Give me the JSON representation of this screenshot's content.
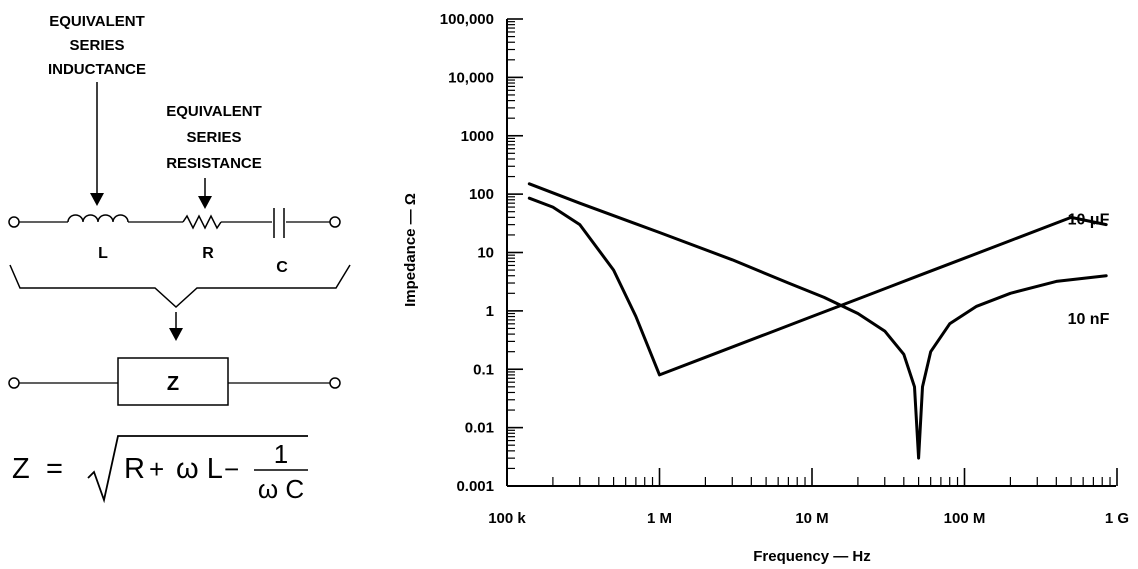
{
  "diagram": {
    "label_esl": [
      "EQUIVALENT",
      "SERIES",
      "INDUCTANCE"
    ],
    "label_esr": [
      "EQUIVALENT",
      "SERIES",
      "RESISTANCE"
    ],
    "label_L": "L",
    "label_R": "R",
    "label_C": "C",
    "label_Z": "Z",
    "formula": {
      "lhs": "Z",
      "eq": "=",
      "r": "R",
      "plus": "+",
      "omega_l": "ω L",
      "minus": "−",
      "one": "1",
      "omega_c": "ω C"
    }
  },
  "chart_data": {
    "type": "line",
    "xscale": "log",
    "yscale": "log",
    "xlim": [
      100000,
      1000000000
    ],
    "ylim": [
      0.001,
      100000
    ],
    "xlabel": "Frequency — Hz",
    "ylabel": "Impedance — Ω",
    "xticks": [
      {
        "value": 100000,
        "label": "100 k"
      },
      {
        "value": 1000000,
        "label": "1 M"
      },
      {
        "value": 10000000,
        "label": "10 M"
      },
      {
        "value": 100000000,
        "label": "100 M"
      },
      {
        "value": 1000000000,
        "label": "1 G"
      }
    ],
    "yticks": [
      {
        "value": 0.001,
        "label": "0.001"
      },
      {
        "value": 0.01,
        "label": "0.01"
      },
      {
        "value": 0.1,
        "label": "0.1"
      },
      {
        "value": 1,
        "label": "1"
      },
      {
        "value": 10,
        "label": "10"
      },
      {
        "value": 100,
        "label": "100"
      },
      {
        "value": 1000,
        "label": "1000"
      },
      {
        "value": 10000,
        "label": "10,000"
      },
      {
        "value": 100000,
        "label": "100,000"
      }
    ],
    "series": [
      {
        "name": "10 μF",
        "x": [
          140000,
          200000,
          300000,
          500000,
          700000,
          1000000,
          2000000,
          5000000,
          10000000,
          20000000,
          50000000,
          100000000,
          200000000,
          500000000,
          850000000
        ],
        "y": [
          85,
          60,
          30,
          5,
          0.8,
          0.08,
          0.16,
          0.4,
          0.8,
          1.6,
          4,
          8,
          16,
          40,
          30
        ]
      },
      {
        "name": "10 nF",
        "x": [
          140000,
          300000,
          1000000,
          3000000,
          7000000,
          12000000,
          20000000,
          30000000,
          40000000,
          47000000,
          50000000,
          53000000,
          60000000,
          80000000,
          120000000,
          200000000,
          400000000,
          850000000
        ],
        "y": [
          150,
          70,
          22,
          7.5,
          3,
          1.7,
          0.9,
          0.45,
          0.18,
          0.05,
          0.003,
          0.05,
          0.2,
          0.6,
          1.2,
          2,
          3.2,
          4
        ]
      }
    ],
    "annotations": [
      {
        "text": "10 μF",
        "x": 650000000,
        "y": 30
      },
      {
        "text": "10 nF",
        "x": 650000000,
        "y": 0.6
      }
    ]
  }
}
